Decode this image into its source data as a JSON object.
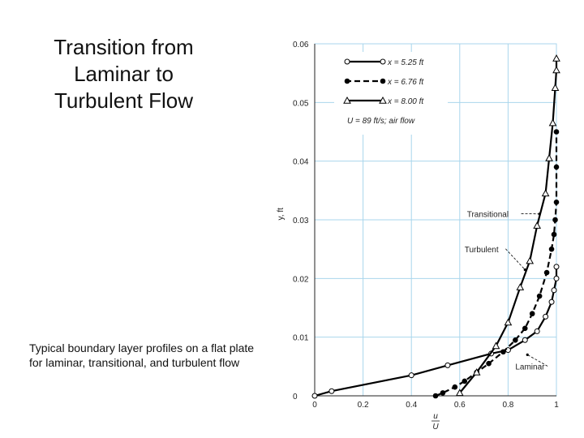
{
  "slide": {
    "title": "Transition from\nLaminar to\nTurbulent Flow",
    "caption": "Typical boundary layer profiles on a flat plate for laminar, transitional, and turbulent flow"
  },
  "chart_data": {
    "type": "line",
    "xlabel_num": "u",
    "xlabel_den": "U",
    "ylabel": "y, ft",
    "xlim": [
      0,
      1.0
    ],
    "ylim": [
      0,
      0.06
    ],
    "xticks": [
      0,
      0.2,
      0.4,
      0.6,
      0.8,
      1.0
    ],
    "xtick_labels": [
      "0",
      "0.2",
      "0.4",
      "0.6",
      "0.8",
      "1"
    ],
    "yticks": [
      0,
      0.01,
      0.02,
      0.03,
      0.04,
      0.05,
      0.06
    ],
    "ytick_labels": [
      "0",
      "0.01",
      "0.02",
      "0.03",
      "0.04",
      "0.05",
      "0.06"
    ],
    "grid": true,
    "legend_position": "top-left",
    "legend_note": "U = 89 ft/s; air flow",
    "series": [
      {
        "name": "x = 5.25 ft",
        "line": "solid",
        "marker": "open-circle",
        "color": "#000000",
        "x": [
          0.0,
          0.07,
          0.4,
          0.55,
          0.73,
          0.8,
          0.87,
          0.92,
          0.955,
          0.98,
          0.99,
          1.0,
          1.0
        ],
        "y": [
          0.0,
          0.0008,
          0.0035,
          0.0052,
          0.0072,
          0.0078,
          0.0095,
          0.011,
          0.0135,
          0.016,
          0.018,
          0.02,
          0.022
        ]
      },
      {
        "name": "x = 6.76 ft",
        "line": "dashed",
        "marker": "filled-circle",
        "color": "#000000",
        "x": [
          0.5,
          0.53,
          0.58,
          0.62,
          0.67,
          0.72,
          0.78,
          0.83,
          0.87,
          0.9,
          0.93,
          0.96,
          0.98,
          0.99,
          0.995,
          1.0,
          1.0,
          1.0
        ],
        "y": [
          0.0,
          0.0005,
          0.0015,
          0.0025,
          0.004,
          0.0055,
          0.0075,
          0.0095,
          0.0115,
          0.014,
          0.017,
          0.021,
          0.025,
          0.0275,
          0.03,
          0.033,
          0.039,
          0.045
        ]
      },
      {
        "name": "x = 8.00 ft",
        "line": "solid",
        "marker": "open-triangle",
        "color": "#000000",
        "x": [
          0.6,
          0.67,
          0.75,
          0.8,
          0.85,
          0.89,
          0.92,
          0.955,
          0.97,
          0.985,
          0.995,
          1.0,
          1.0
        ],
        "y": [
          0.0005,
          0.004,
          0.0085,
          0.0125,
          0.0185,
          0.023,
          0.029,
          0.0345,
          0.0405,
          0.0465,
          0.0525,
          0.0555,
          0.0575
        ]
      }
    ],
    "annotations": [
      {
        "text": "Transitional",
        "x": 0.63,
        "y": 0.0305,
        "tx": 0.93,
        "ty": 0.031
      },
      {
        "text": "Turbulent",
        "x": 0.62,
        "y": 0.0245,
        "tx": 0.87,
        "ty": 0.0215
      },
      {
        "text": "Laminar",
        "x": 0.83,
        "y": 0.0045,
        "tx": 0.88,
        "ty": 0.007
      }
    ]
  }
}
